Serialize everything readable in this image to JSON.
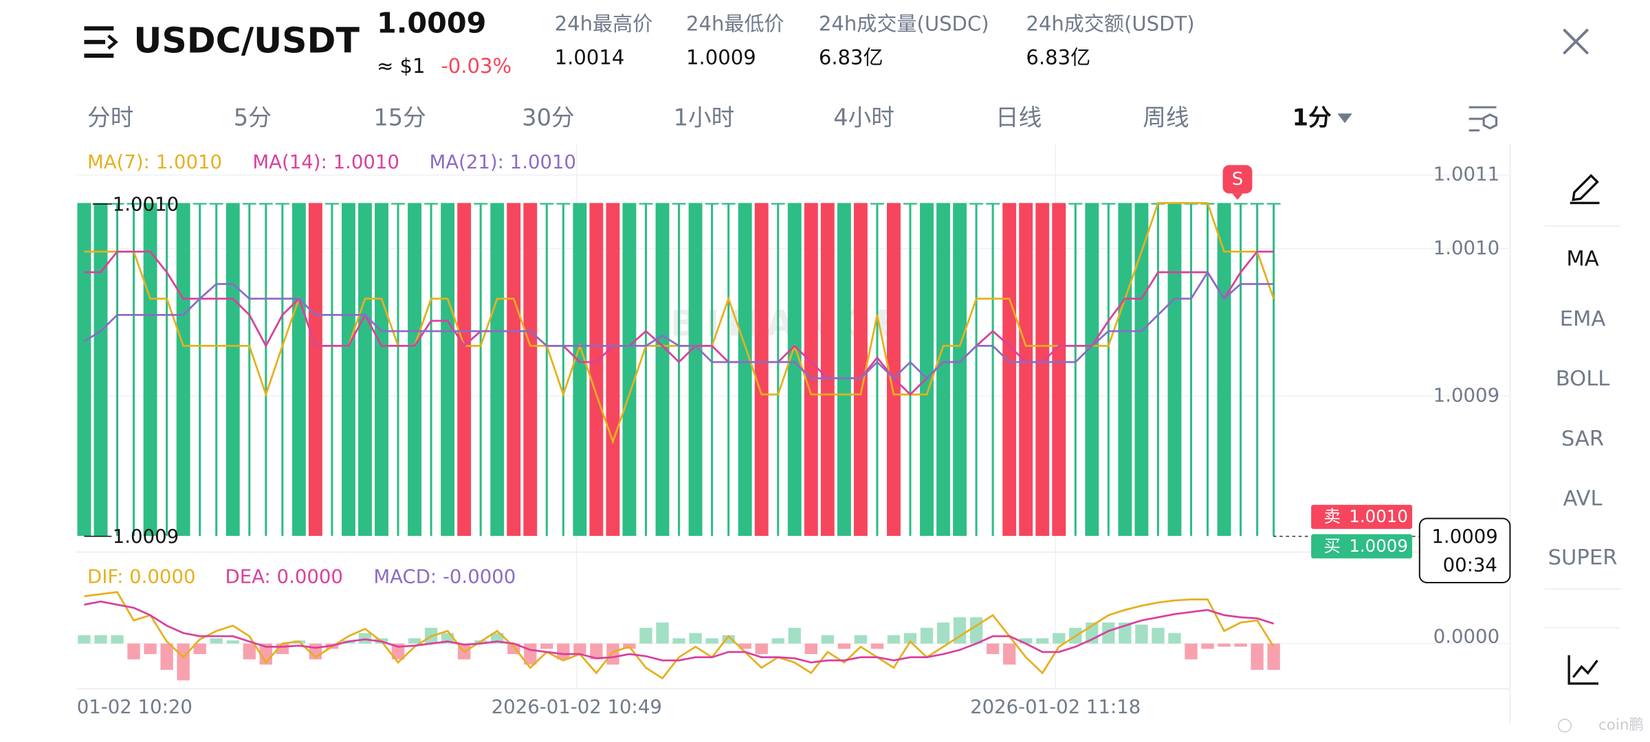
{
  "header": {
    "pair": "USDC/USDT",
    "price": "1.0009",
    "approx": "≈ $1",
    "change": "-0.03%",
    "stats": [
      {
        "label": "24h最高价",
        "value": "1.0014"
      },
      {
        "label": "24h最低价",
        "value": "1.0009"
      },
      {
        "label": "24h成交量(USDC)",
        "value": "6.83亿"
      },
      {
        "label": "24h成交额(USDT)",
        "value": "6.83亿"
      }
    ]
  },
  "tabs": [
    "分时",
    "5分",
    "15分",
    "30分",
    "1小时",
    "4小时",
    "日线",
    "周线",
    "1分"
  ],
  "sidebar": [
    "MA",
    "EMA",
    "BOLL",
    "SAR",
    "AVL",
    "SUPER"
  ],
  "chart": {
    "type": "candlestick",
    "up_color": "#2ebd85",
    "down_color": "#f6465d",
    "ylim": [
      1.000794,
      1.001071
    ],
    "yticks": [
      {
        "value": 1.00105,
        "label": "1.0011"
      },
      {
        "value": 1.001,
        "label": "1.0010"
      },
      {
        "value": 1.0009,
        "label": "1.0009"
      }
    ],
    "high_label": "1.0010",
    "low_label": "1.0009",
    "signal": "S",
    "watermark": "BINANCE",
    "sell": {
      "label": "卖",
      "price": "1.0010"
    },
    "buy": {
      "label": "买",
      "price": "1.0009"
    },
    "last": {
      "price": "1.0009",
      "countdown": "00:34"
    },
    "x_labels": [
      "01-02 10:20",
      "2026-01-02 10:49",
      "2026-01-02 11:18"
    ],
    "candles": [
      [
        1.000805,
        1.001031,
        1.000805,
        1.001031
      ],
      [
        1.000805,
        1.001031,
        1.000805,
        1.001031
      ],
      [
        1.001031,
        1.001031,
        1.000805,
        1.001031
      ],
      [
        1.001031,
        1.001031,
        1.000805,
        1.001031
      ],
      [
        1.000805,
        1.001031,
        1.000805,
        1.001031
      ],
      [
        1.001031,
        1.001031,
        1.000805,
        1.001031
      ],
      [
        1.000805,
        1.001031,
        1.000805,
        1.001031
      ],
      [
        1.001031,
        1.001031,
        1.000805,
        1.001031
      ],
      [
        1.001031,
        1.001031,
        1.000805,
        1.001031
      ],
      [
        1.000805,
        1.001031,
        1.000805,
        1.001031
      ],
      [
        1.001031,
        1.001031,
        1.000805,
        1.001031
      ],
      [
        1.001031,
        1.001031,
        1.000805,
        1.001031
      ],
      [
        1.001031,
        1.001031,
        1.000805,
        1.001031
      ],
      [
        1.000805,
        1.001031,
        1.000805,
        1.001031
      ],
      [
        1.001031,
        1.001031,
        1.000805,
        1.000805
      ],
      [
        1.001031,
        1.001031,
        1.000805,
        1.001031
      ],
      [
        1.000805,
        1.001031,
        1.000805,
        1.001031
      ],
      [
        1.000805,
        1.001031,
        1.000805,
        1.001031
      ],
      [
        1.000805,
        1.001031,
        1.000805,
        1.001031
      ],
      [
        1.001031,
        1.001031,
        1.000805,
        1.001031
      ],
      [
        1.000805,
        1.001031,
        1.000805,
        1.001031
      ],
      [
        1.001031,
        1.001031,
        1.000805,
        1.001031
      ],
      [
        1.000805,
        1.001031,
        1.000805,
        1.001031
      ],
      [
        1.001031,
        1.001031,
        1.000805,
        1.000805
      ],
      [
        1.001031,
        1.001031,
        1.000805,
        1.001031
      ],
      [
        1.000805,
        1.001031,
        1.000805,
        1.001031
      ],
      [
        1.001031,
        1.001031,
        1.000805,
        1.000805
      ],
      [
        1.001031,
        1.001031,
        1.000805,
        1.000805
      ],
      [
        1.001031,
        1.001031,
        1.000805,
        1.001031
      ],
      [
        1.001031,
        1.001031,
        1.000805,
        1.001031
      ],
      [
        1.000805,
        1.001031,
        1.000805,
        1.001031
      ],
      [
        1.001031,
        1.001031,
        1.000805,
        1.000805
      ],
      [
        1.001031,
        1.001031,
        1.000805,
        1.000805
      ],
      [
        1.000805,
        1.001031,
        1.000805,
        1.001031
      ],
      [
        1.001031,
        1.001031,
        1.000805,
        1.001031
      ],
      [
        1.000805,
        1.001031,
        1.000805,
        1.001031
      ],
      [
        1.001031,
        1.001031,
        1.000805,
        1.001031
      ],
      [
        1.000805,
        1.001031,
        1.000805,
        1.001031
      ],
      [
        1.001031,
        1.001031,
        1.000805,
        1.001031
      ],
      [
        1.001031,
        1.001031,
        1.000805,
        1.001031
      ],
      [
        1.000805,
        1.001031,
        1.000805,
        1.001031
      ],
      [
        1.001031,
        1.001031,
        1.000805,
        1.000805
      ],
      [
        1.001031,
        1.001031,
        1.000805,
        1.001031
      ],
      [
        1.000805,
        1.001031,
        1.000805,
        1.001031
      ],
      [
        1.001031,
        1.001031,
        1.000805,
        1.000805
      ],
      [
        1.001031,
        1.001031,
        1.000805,
        1.000805
      ],
      [
        1.000805,
        1.001031,
        1.000805,
        1.001031
      ],
      [
        1.001031,
        1.001031,
        1.000805,
        1.000805
      ],
      [
        1.001031,
        1.001031,
        1.000805,
        1.001031
      ],
      [
        1.001031,
        1.001031,
        1.000805,
        1.000805
      ],
      [
        1.001031,
        1.001031,
        1.000805,
        1.001031
      ],
      [
        1.000805,
        1.001031,
        1.000805,
        1.001031
      ],
      [
        1.000805,
        1.001031,
        1.000805,
        1.001031
      ],
      [
        1.000805,
        1.001031,
        1.000805,
        1.001031
      ],
      [
        1.001031,
        1.001031,
        1.000805,
        1.001031
      ],
      [
        1.001031,
        1.001031,
        1.000805,
        1.001031
      ],
      [
        1.001031,
        1.001031,
        1.000805,
        1.000805
      ],
      [
        1.001031,
        1.001031,
        1.000805,
        1.000805
      ],
      [
        1.001031,
        1.001031,
        1.000805,
        1.000805
      ],
      [
        1.001031,
        1.001031,
        1.000805,
        1.000805
      ],
      [
        1.001031,
        1.001031,
        1.000805,
        1.001031
      ],
      [
        1.000805,
        1.001031,
        1.000805,
        1.001031
      ],
      [
        1.001031,
        1.001031,
        1.000805,
        1.001031
      ],
      [
        1.000805,
        1.001031,
        1.000805,
        1.001031
      ],
      [
        1.000805,
        1.001031,
        1.000805,
        1.001031
      ],
      [
        1.001031,
        1.001031,
        1.000805,
        1.001031
      ],
      [
        1.000805,
        1.001031,
        1.000805,
        1.001031
      ],
      [
        1.001031,
        1.001031,
        1.000805,
        1.001031
      ],
      [
        1.001031,
        1.001031,
        1.000805,
        1.001031
      ],
      [
        1.000805,
        1.001031,
        1.000805,
        1.001031
      ],
      [
        1.001031,
        1.001031,
        1.000805,
        1.001031
      ],
      [
        1.001031,
        1.001031,
        1.000805,
        1.001031
      ],
      [
        1.001031,
        1.001031,
        1.000805,
        1.001031
      ]
    ],
    "series": [
      {
        "name": "MA(7): 1.0010",
        "color": "#e6b01e",
        "values": [
          1.000998,
          1.000998,
          1.000998,
          1.000998,
          1.000966,
          1.000966,
          1.000934,
          1.000934,
          1.000934,
          1.000934,
          1.000934,
          1.000901,
          1.000934,
          1.000966,
          1.000934,
          1.000934,
          1.000934,
          1.000966,
          1.000966,
          1.000934,
          1.000934,
          1.000966,
          1.000966,
          1.000934,
          1.000934,
          1.000966,
          1.000966,
          1.000934,
          1.000934,
          1.000901,
          1.000934,
          1.000901,
          1.000869,
          1.000901,
          1.000934,
          1.000934,
          1.000934,
          1.000934,
          1.000934,
          1.000966,
          1.000934,
          1.000901,
          1.000901,
          1.000934,
          1.000901,
          1.000901,
          1.000901,
          1.000901,
          1.000955,
          1.000901,
          1.000901,
          1.000901,
          1.000934,
          1.000934,
          1.000966,
          1.000966,
          1.000966,
          1.000934,
          1.000934,
          1.000934,
          1.000934,
          1.000934,
          1.000934,
          1.000966,
          1.000998,
          1.001031,
          1.001031,
          1.001031,
          1.001031,
          1.000998,
          1.000998,
          1.000998,
          1.000966
        ]
      },
      {
        "name": "MA(14): 1.0010",
        "color": "#d9409e",
        "values": [
          1.000984,
          1.000984,
          1.000998,
          1.000998,
          1.000998,
          1.000984,
          1.000966,
          1.000966,
          1.000966,
          1.000966,
          1.000955,
          1.000934,
          1.000955,
          1.000966,
          1.000934,
          1.000934,
          1.000934,
          1.000955,
          1.000934,
          1.000934,
          1.000934,
          1.000951,
          1.000951,
          1.000934,
          1.000944,
          1.000944,
          1.000944,
          1.000944,
          1.000934,
          1.000934,
          1.000923,
          1.000923,
          1.000934,
          1.000934,
          1.000944,
          1.000934,
          1.000923,
          1.000934,
          1.000934,
          1.000923,
          1.000923,
          1.000923,
          1.000923,
          1.000934,
          1.000923,
          1.000912,
          1.000912,
          1.000912,
          1.000926,
          1.000912,
          1.000901,
          1.000912,
          1.000923,
          1.000923,
          1.000934,
          1.000944,
          1.000934,
          1.000923,
          1.000923,
          1.000934,
          1.000934,
          1.000934,
          1.000951,
          1.000966,
          1.000966,
          1.000984,
          1.000984,
          1.000984,
          1.000984,
          1.000966,
          1.000984,
          1.000998,
          1.000998
        ]
      },
      {
        "name": "MA(21): 1.0010",
        "color": "#8c6bc4",
        "values": [
          1.000937,
          1.000944,
          1.000955,
          1.000955,
          1.000955,
          1.000955,
          1.000955,
          1.000966,
          1.000976,
          1.000976,
          1.000966,
          1.000966,
          1.000966,
          1.000966,
          1.000955,
          1.000955,
          1.000955,
          1.000955,
          1.000944,
          1.000944,
          1.000944,
          1.000944,
          1.000944,
          1.000944,
          1.000944,
          1.000944,
          1.000944,
          1.000944,
          1.000934,
          1.000934,
          1.000934,
          1.000934,
          1.000934,
          1.000934,
          1.000934,
          1.000941,
          1.000934,
          1.000934,
          1.000923,
          1.000923,
          1.000923,
          1.000923,
          1.000923,
          1.000923,
          1.000912,
          1.000912,
          1.000912,
          1.000912,
          1.000923,
          1.000912,
          1.000923,
          1.000912,
          1.000923,
          1.000923,
          1.000934,
          1.000934,
          1.000923,
          1.000923,
          1.000923,
          1.000923,
          1.000923,
          1.000934,
          1.000944,
          1.000944,
          1.000944,
          1.000955,
          1.000966,
          1.000966,
          1.000984,
          1.000966,
          1.000976,
          1.000976,
          1.000976
        ]
      }
    ]
  },
  "macd": {
    "type": "bar",
    "ylim": [
      -5e-06,
      5e-06
    ],
    "yticks": [
      {
        "value": 0,
        "label": "0.0000"
      }
    ],
    "histogram": {
      "name": "MACD: -0.0000",
      "color": "#8c6bc4",
      "up_color": "#a3dfc4",
      "down_color": "#f8a1ae",
      "values": [
        8e-07,
        8e-07,
        8e-07,
        -1.5e-06,
        -1e-06,
        -2.5e-06,
        -3.5e-06,
        -1e-06,
        5e-07,
        3e-07,
        -1.5e-06,
        -2e-06,
        -1e-06,
        3e-07,
        -1.5e-06,
        -5e-07,
        3e-07,
        1e-06,
        5e-07,
        -1.5e-06,
        5e-07,
        1.5e-06,
        1e-06,
        -1.5e-06,
        3e-07,
        1e-06,
        -1e-06,
        -2e-06,
        -5e-07,
        -1.5e-06,
        -1e-06,
        -1.5e-06,
        -2e-06,
        -5e-07,
        1.5e-06,
        2e-06,
        5e-07,
        1e-06,
        5e-07,
        8e-07,
        -5e-07,
        -1e-06,
        5e-07,
        1.5e-06,
        -1e-06,
        8e-07,
        -5e-07,
        8e-07,
        -5e-07,
        8e-07,
        1e-06,
        1.5e-06,
        2e-06,
        2.5e-06,
        2.5e-06,
        -1e-06,
        -2e-06,
        5e-07,
        5e-07,
        1e-06,
        1.5e-06,
        2e-06,
        2e-06,
        2e-06,
        1.8e-06,
        1.5e-06,
        1e-06,
        -1.5e-06,
        -5e-07,
        -3e-07,
        -3e-07,
        -2.5e-06,
        -2.5e-06
      ]
    },
    "series": [
      {
        "name": "DIF: 0.0000",
        "color": "#e6b01e",
        "values": [
          4.5e-06,
          4.7e-06,
          4.9e-06,
          2.2e-06,
          2.7e-06,
          2e-07,
          -1.3e-06,
          4e-07,
          1.2e-06,
          1.7e-06,
          7e-07,
          -1.8e-06,
          0,
          2e-07,
          -1.3e-06,
          -3e-07,
          7e-07,
          1.4e-06,
          2e-07,
          -1.8e-06,
          -3e-07,
          7e-07,
          1.2e-06,
          -8e-07,
          2e-07,
          1.2e-06,
          -3e-07,
          -2.3e-06,
          -8e-07,
          -1.6e-06,
          -1e-06,
          -2.8e-06,
          -8e-07,
          -3e-07,
          -2.3e-06,
          -3.3e-06,
          -1.3e-06,
          -3e-07,
          -1.3e-06,
          7e-07,
          -8e-07,
          -2.3e-06,
          -1.3e-06,
          -1.8e-06,
          -2.8e-06,
          -8e-07,
          -1.8e-06,
          -3e-07,
          -1.3e-06,
          -2.3e-06,
          2e-07,
          -1.3e-06,
          -3e-07,
          7e-07,
          1.7e-06,
          2.7e-06,
          7e-07,
          -1.3e-06,
          -2.8e-06,
          -3e-07,
          7e-07,
          1.7e-06,
          2.7e-06,
          3.2e-06,
          3.6e-06,
          3.9e-06,
          4.1e-06,
          4.2e-06,
          4.2e-06,
          1.2e-06,
          2e-06,
          2.2e-06,
          -3e-07
        ]
      },
      {
        "name": "DEA: 0.0000",
        "color": "#d9409e",
        "values": [
          3.7e-06,
          4e-06,
          3.7e-06,
          3.4e-06,
          2.7e-06,
          1.7e-06,
          1e-06,
          7e-07,
          7e-07,
          7e-07,
          2e-07,
          -3e-07,
          -3e-07,
          -2e-07,
          -4e-07,
          -2e-07,
          2e-07,
          4e-07,
          2e-07,
          -3e-07,
          -2e-07,
          0,
          2e-07,
          -1e-07,
          0,
          2e-07,
          0,
          -6e-07,
          -8e-07,
          -1e-06,
          -1e-06,
          -1.4e-06,
          -1.3e-06,
          -1e-06,
          -1.2e-06,
          -1.6e-06,
          -1.6e-06,
          -1.3e-06,
          -1.3e-06,
          -8e-07,
          -8e-07,
          -1.3e-06,
          -1.3e-06,
          -1.4e-06,
          -1.8e-06,
          -1.6e-06,
          -1.6e-06,
          -1.3e-06,
          -1.3e-06,
          -1.6e-06,
          -1.3e-06,
          -1.3e-06,
          -1e-06,
          -6e-07,
          0,
          7e-07,
          7e-07,
          0,
          -8e-07,
          -8e-07,
          -3e-07,
          4e-07,
          1.2e-06,
          1.7e-06,
          2.2e-06,
          2.5e-06,
          2.8e-06,
          3e-06,
          3.2e-06,
          2.7e-06,
          2.5e-06,
          2.4e-06,
          1.9e-06
        ]
      }
    ]
  },
  "footer_watermark": "coin鹏"
}
